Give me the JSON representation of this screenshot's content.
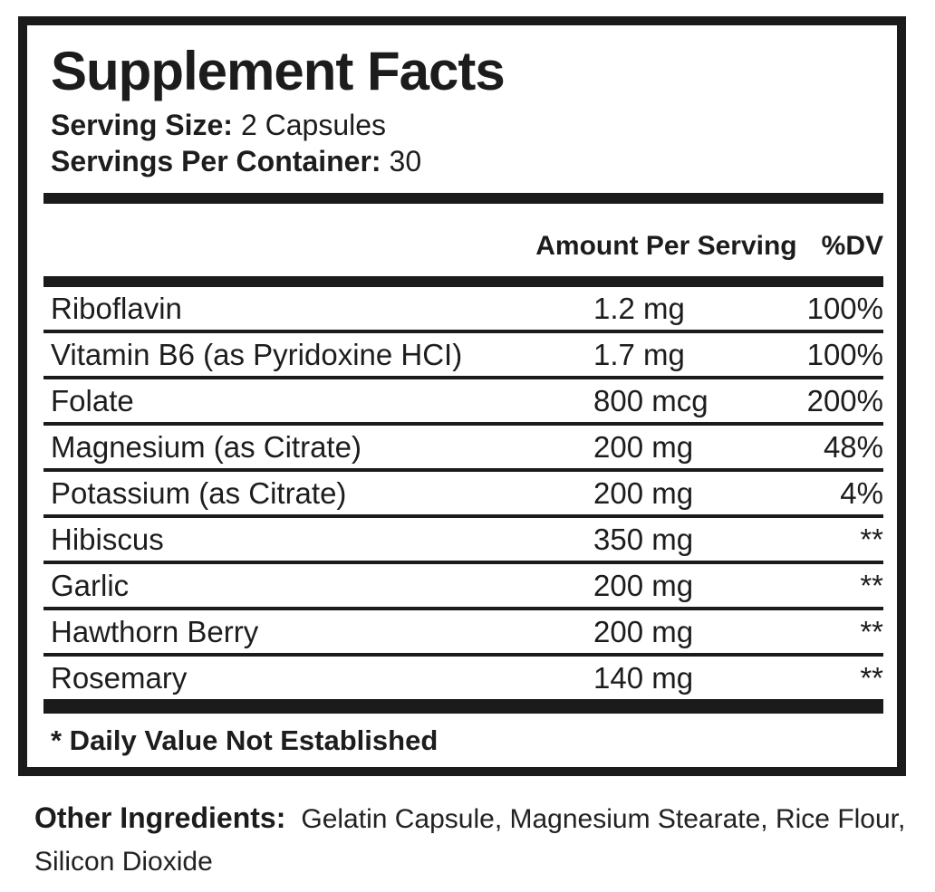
{
  "label": {
    "title": "Supplement Facts",
    "serving_size_label": "Serving Size:",
    "serving_size_value": "2 Capsules",
    "servings_per_container_label": "Servings Per Container:",
    "servings_per_container_value": "30",
    "amount_header": "Amount Per Serving",
    "dv_header": "%DV",
    "rows": [
      {
        "name": "Riboflavin",
        "amount": "1.2 mg",
        "dv": "100%"
      },
      {
        "name": "Vitamin B6 (as Pyridoxine HCI)",
        "amount": "1.7 mg",
        "dv": "100%"
      },
      {
        "name": "Folate",
        "amount": "800 mcg",
        "dv": "200%"
      },
      {
        "name": "Magnesium (as Citrate)",
        "amount": "200 mg",
        "dv": "48%"
      },
      {
        "name": "Potassium (as Citrate)",
        "amount": "200 mg",
        "dv": "4%"
      },
      {
        "name": "Hibiscus",
        "amount": "350 mg",
        "dv": "**"
      },
      {
        "name": "Garlic",
        "amount": "200 mg",
        "dv": "**"
      },
      {
        "name": "Hawthorn Berry",
        "amount": "200 mg",
        "dv": "**"
      },
      {
        "name": "Rosemary",
        "amount": "140 mg",
        "dv": "**"
      }
    ],
    "footnote": "* Daily Value Not Established",
    "colors": {
      "text": "#1d1d1d",
      "rule": "#1b1b1b",
      "background": "#ffffff"
    }
  },
  "other_ingredients": {
    "label": "Other Ingredients:",
    "lines": [
      "Gelatin Capsule, Magnesium Stearate, Rice Flour,",
      "Silicon Dioxide"
    ]
  }
}
